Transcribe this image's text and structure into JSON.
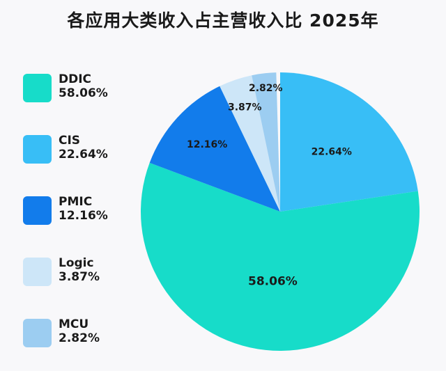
{
  "chart_data": {
    "type": "pie",
    "title": "各应用大类收入占主营收入比 2025年",
    "start_angle": "top",
    "direction": "clockwise",
    "slices": [
      {
        "label": "CIS",
        "value": 22.64,
        "value_label": "22.64%",
        "color": "#38bef6"
      },
      {
        "label": "DDIC",
        "value": 58.06,
        "value_label": "58.06%",
        "color": "#17dcc9"
      },
      {
        "label": "PMIC",
        "value": 12.16,
        "value_label": "12.16%",
        "color": "#127ceb"
      },
      {
        "label": "Logic",
        "value": 3.87,
        "value_label": "3.87%",
        "color": "#cde6f8"
      },
      {
        "label": "MCU",
        "value": 2.82,
        "value_label": "2.82%",
        "color": "#9ccdf1"
      }
    ],
    "legend": [
      {
        "label": "DDIC",
        "value_label": "58.06%",
        "color": "#17dcc9"
      },
      {
        "label": "CIS",
        "value_label": "22.64%",
        "color": "#38bef6"
      },
      {
        "label": "PMIC",
        "value_label": "12.16%",
        "color": "#127ceb"
      },
      {
        "label": "Logic",
        "value_label": "3.87%",
        "color": "#cde6f8"
      },
      {
        "label": "MCU",
        "value_label": "2.82%",
        "color": "#9ccdf1"
      }
    ],
    "legend_position": "left"
  }
}
